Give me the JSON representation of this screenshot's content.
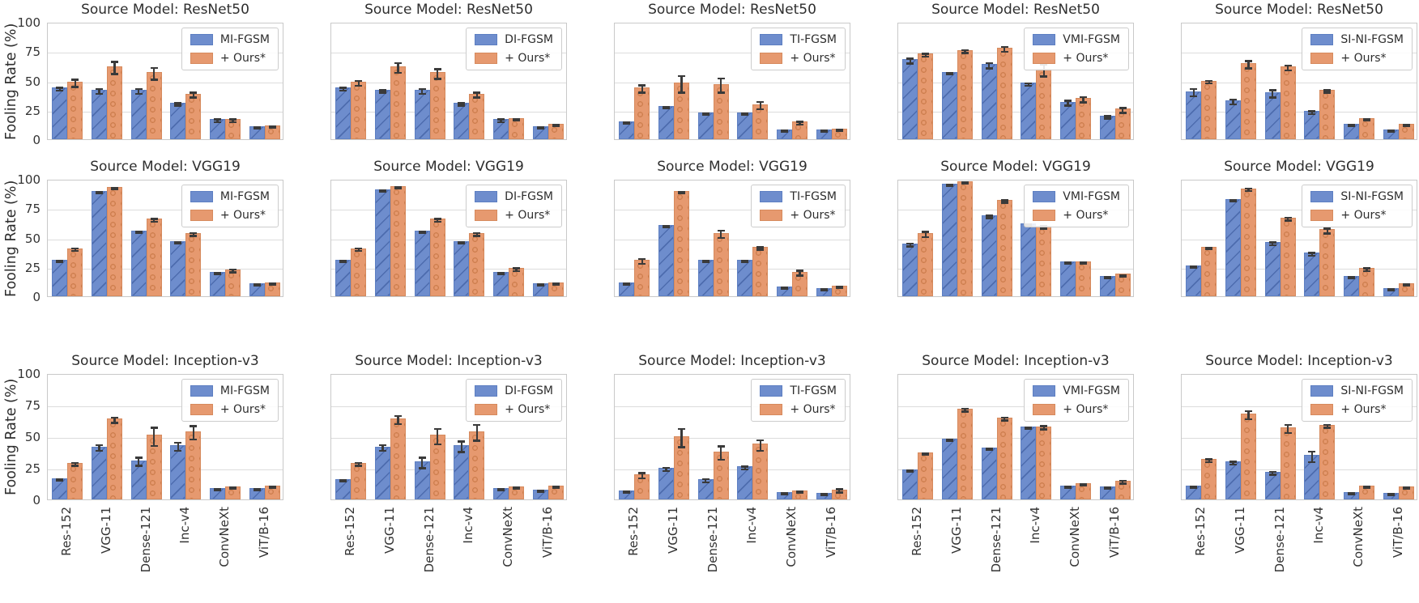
{
  "figure": {
    "ylabel": "Fooling Rate (%)",
    "yticks": [
      0,
      25,
      50,
      75,
      100
    ],
    "categories": [
      "Res-152",
      "VGG-11",
      "Dense-121",
      "Inc-v4",
      "ConvNeXt",
      "ViT/B-16"
    ],
    "ours_label": "+ Ours*",
    "colors": {
      "baseline_fill": "#6e8dcd",
      "baseline_edge": "#5d7fc2",
      "ours_fill": "#e6996f",
      "ours_edge": "#d68a5d",
      "error_bar": "#3a3a3a",
      "grid_line": "#dcdcdc",
      "frame": "#c9c9c9",
      "text": "#2e2e2e"
    }
  },
  "chart_data": [
    {
      "type": "bar",
      "row": 0,
      "col": 0,
      "title": "Source Model: ResNet50",
      "ylim": [
        0,
        100
      ],
      "legend": [
        "MI-FGSM",
        "+ Ours*"
      ],
      "series": [
        {
          "name": "MI-FGSM",
          "values": [
            44,
            42,
            42,
            31,
            17,
            11
          ],
          "errors": [
            2,
            3,
            3,
            2,
            2,
            1
          ]
        },
        {
          "name": "+ Ours*",
          "values": [
            49,
            62,
            57,
            39,
            17,
            12
          ],
          "errors": [
            4,
            6,
            6,
            3,
            2,
            1
          ]
        }
      ]
    },
    {
      "type": "bar",
      "row": 0,
      "col": 1,
      "title": "Source Model: ResNet50",
      "ylim": [
        0,
        100
      ],
      "legend": [
        "DI-FGSM",
        "+ Ours*"
      ],
      "series": [
        {
          "name": "DI-FGSM",
          "values": [
            44,
            42,
            42,
            31,
            17,
            11
          ],
          "errors": [
            2,
            2,
            3,
            2,
            2,
            1
          ]
        },
        {
          "name": "+ Ours*",
          "values": [
            49,
            62,
            57,
            39,
            18,
            13
          ],
          "errors": [
            3,
            5,
            5,
            3,
            1,
            1
          ]
        }
      ]
    },
    {
      "type": "bar",
      "row": 0,
      "col": 2,
      "title": "Source Model: ResNet50",
      "ylim": [
        0,
        100
      ],
      "legend": [
        "TI-FGSM",
        "+ Ours*"
      ],
      "series": [
        {
          "name": "TI-FGSM",
          "values": [
            15,
            28,
            23,
            23,
            8,
            8
          ],
          "errors": [
            1,
            1,
            1,
            1,
            1,
            1
          ]
        },
        {
          "name": "+ Ours*",
          "values": [
            44,
            48,
            47,
            30,
            15,
            9
          ],
          "errors": [
            4,
            8,
            7,
            4,
            2,
            1
          ]
        }
      ]
    },
    {
      "type": "bar",
      "row": 0,
      "col": 3,
      "title": "Source Model: ResNet50",
      "ylim": [
        0,
        100
      ],
      "legend": [
        "VMI-FGSM",
        "+ Ours*"
      ],
      "series": [
        {
          "name": "VMI-FGSM",
          "values": [
            68,
            57,
            64,
            48,
            32,
            20
          ],
          "errors": [
            3,
            1,
            3,
            2,
            3,
            2
          ]
        },
        {
          "name": "+ Ours*",
          "values": [
            73,
            76,
            78,
            60,
            35,
            26
          ],
          "errors": [
            2,
            2,
            3,
            6,
            3,
            3
          ]
        }
      ]
    },
    {
      "type": "bar",
      "row": 0,
      "col": 4,
      "title": "Source Model: ResNet50",
      "ylim": [
        0,
        100
      ],
      "legend": [
        "SI-NI-FGSM",
        "+ Ours*"
      ],
      "series": [
        {
          "name": "SI-NI-FGSM",
          "values": [
            41,
            33,
            40,
            24,
            13,
            8
          ],
          "errors": [
            4,
            3,
            4,
            2,
            1,
            1
          ]
        },
        {
          "name": "+ Ours*",
          "values": [
            50,
            65,
            62,
            42,
            18,
            13
          ],
          "errors": [
            2,
            4,
            3,
            2,
            1,
            1
          ]
        }
      ]
    },
    {
      "type": "bar",
      "row": 1,
      "col": 0,
      "title": "Source Model: VGG19",
      "ylim": [
        0,
        100
      ],
      "legend": [
        "MI-FGSM",
        "+ Ours*"
      ],
      "series": [
        {
          "name": "MI-FGSM",
          "values": [
            31,
            90,
            56,
            47,
            21,
            11
          ],
          "errors": [
            1,
            1,
            1,
            1,
            1,
            1
          ]
        },
        {
          "name": "+ Ours*",
          "values": [
            41,
            93,
            66,
            54,
            23,
            12
          ],
          "errors": [
            2,
            1,
            2,
            2,
            2,
            1
          ]
        }
      ]
    },
    {
      "type": "bar",
      "row": 1,
      "col": 1,
      "title": "Source Model: VGG19",
      "ylim": [
        0,
        100
      ],
      "legend": [
        "DI-FGSM",
        "+ Ours*"
      ],
      "series": [
        {
          "name": "DI-FGSM",
          "values": [
            31,
            91,
            56,
            47,
            21,
            11
          ],
          "errors": [
            1,
            1,
            1,
            1,
            1,
            1
          ]
        },
        {
          "name": "+ Ours*",
          "values": [
            41,
            94,
            66,
            54,
            24,
            12
          ],
          "errors": [
            2,
            1,
            2,
            2,
            2,
            1
          ]
        }
      ]
    },
    {
      "type": "bar",
      "row": 1,
      "col": 2,
      "title": "Source Model: VGG19",
      "ylim": [
        0,
        100
      ],
      "legend": [
        "TI-FGSM",
        "+ Ours*"
      ],
      "series": [
        {
          "name": "TI-FGSM",
          "values": [
            12,
            61,
            31,
            31,
            8,
            7
          ],
          "errors": [
            1,
            1,
            1,
            1,
            1,
            1
          ]
        },
        {
          "name": "+ Ours*",
          "values": [
            31,
            90,
            54,
            42,
            21,
            9
          ],
          "errors": [
            3,
            1,
            4,
            2,
            3,
            1
          ]
        }
      ]
    },
    {
      "type": "bar",
      "row": 1,
      "col": 3,
      "title": "Source Model: VGG19",
      "ylim": [
        0,
        100
      ],
      "legend": [
        "VMI-FGSM",
        "+ Ours*"
      ],
      "series": [
        {
          "name": "VMI-FGSM",
          "values": [
            45,
            96,
            69,
            62,
            30,
            17
          ],
          "errors": [
            2,
            1,
            2,
            1,
            1,
            1
          ]
        },
        {
          "name": "+ Ours*",
          "values": [
            54,
            98,
            82,
            60,
            30,
            19
          ],
          "errors": [
            3,
            1,
            2,
            2,
            1,
            1
          ]
        }
      ]
    },
    {
      "type": "bar",
      "row": 1,
      "col": 4,
      "title": "Source Model: VGG19",
      "ylim": [
        0,
        100
      ],
      "legend": [
        "SI-NI-FGSM",
        "+ Ours*"
      ],
      "series": [
        {
          "name": "SI-NI-FGSM",
          "values": [
            26,
            83,
            46,
            37,
            17,
            7
          ],
          "errors": [
            1,
            1,
            2,
            2,
            1,
            1
          ]
        },
        {
          "name": "+ Ours*",
          "values": [
            42,
            92,
            67,
            57,
            24,
            11
          ],
          "errors": [
            1,
            2,
            2,
            3,
            2,
            1
          ]
        }
      ]
    },
    {
      "type": "bar",
      "row": 2,
      "col": 0,
      "title": "Source Model: Inception-v3",
      "ylim": [
        0,
        100
      ],
      "legend": [
        "MI-FGSM",
        "+ Ours*"
      ],
      "series": [
        {
          "name": "MI-FGSM",
          "values": [
            17,
            42,
            31,
            43,
            9,
            9
          ],
          "errors": [
            1,
            3,
            4,
            4,
            1,
            1
          ]
        },
        {
          "name": "+ Ours*",
          "values": [
            29,
            64,
            51,
            54,
            10,
            11
          ],
          "errors": [
            2,
            3,
            8,
            6,
            1,
            1
          ]
        }
      ]
    },
    {
      "type": "bar",
      "row": 2,
      "col": 1,
      "title": "Source Model: Inception-v3",
      "ylim": [
        0,
        100
      ],
      "legend": [
        "DI-FGSM",
        "+ Ours*"
      ],
      "series": [
        {
          "name": "DI-FGSM",
          "values": [
            16,
            42,
            30,
            43,
            9,
            8
          ],
          "errors": [
            1,
            3,
            5,
            5,
            1,
            1
          ]
        },
        {
          "name": "+ Ours*",
          "values": [
            29,
            64,
            51,
            54,
            10,
            11
          ],
          "errors": [
            2,
            4,
            7,
            7,
            1,
            1
          ]
        }
      ]
    },
    {
      "type": "bar",
      "row": 2,
      "col": 2,
      "title": "Source Model: Inception-v3",
      "ylim": [
        0,
        100
      ],
      "legend": [
        "TI-FGSM",
        "+ Ours*"
      ],
      "series": [
        {
          "name": "TI-FGSM",
          "values": [
            7,
            25,
            16,
            26,
            6,
            5
          ],
          "errors": [
            1,
            2,
            2,
            2,
            1,
            1
          ]
        },
        {
          "name": "+ Ours*",
          "values": [
            20,
            50,
            38,
            44,
            7,
            8
          ],
          "errors": [
            3,
            8,
            6,
            5,
            1,
            2
          ]
        }
      ]
    },
    {
      "type": "bar",
      "row": 2,
      "col": 3,
      "title": "Source Model: Inception-v3",
      "ylim": [
        0,
        100
      ],
      "legend": [
        "VMI-FGSM",
        "+ Ours*"
      ],
      "series": [
        {
          "name": "VMI-FGSM",
          "values": [
            24,
            48,
            41,
            58,
            11,
            10
          ],
          "errors": [
            1,
            1,
            1,
            1,
            1,
            1
          ]
        },
        {
          "name": "+ Ours*",
          "values": [
            37,
            72,
            65,
            58,
            13,
            15
          ],
          "errors": [
            1,
            2,
            2,
            2,
            1,
            2
          ]
        }
      ]
    },
    {
      "type": "bar",
      "row": 2,
      "col": 4,
      "title": "Source Model: Inception-v3",
      "ylim": [
        0,
        100
      ],
      "legend": [
        "SI-NI-FGSM",
        "+ Ours*"
      ],
      "series": [
        {
          "name": "SI-NI-FGSM",
          "values": [
            11,
            30,
            22,
            35,
            6,
            5
          ],
          "errors": [
            1,
            2,
            2,
            5,
            1,
            1
          ]
        },
        {
          "name": "+ Ours*",
          "values": [
            32,
            68,
            57,
            59,
            11,
            10
          ],
          "errors": [
            2,
            4,
            4,
            2,
            1,
            1
          ]
        }
      ]
    }
  ]
}
